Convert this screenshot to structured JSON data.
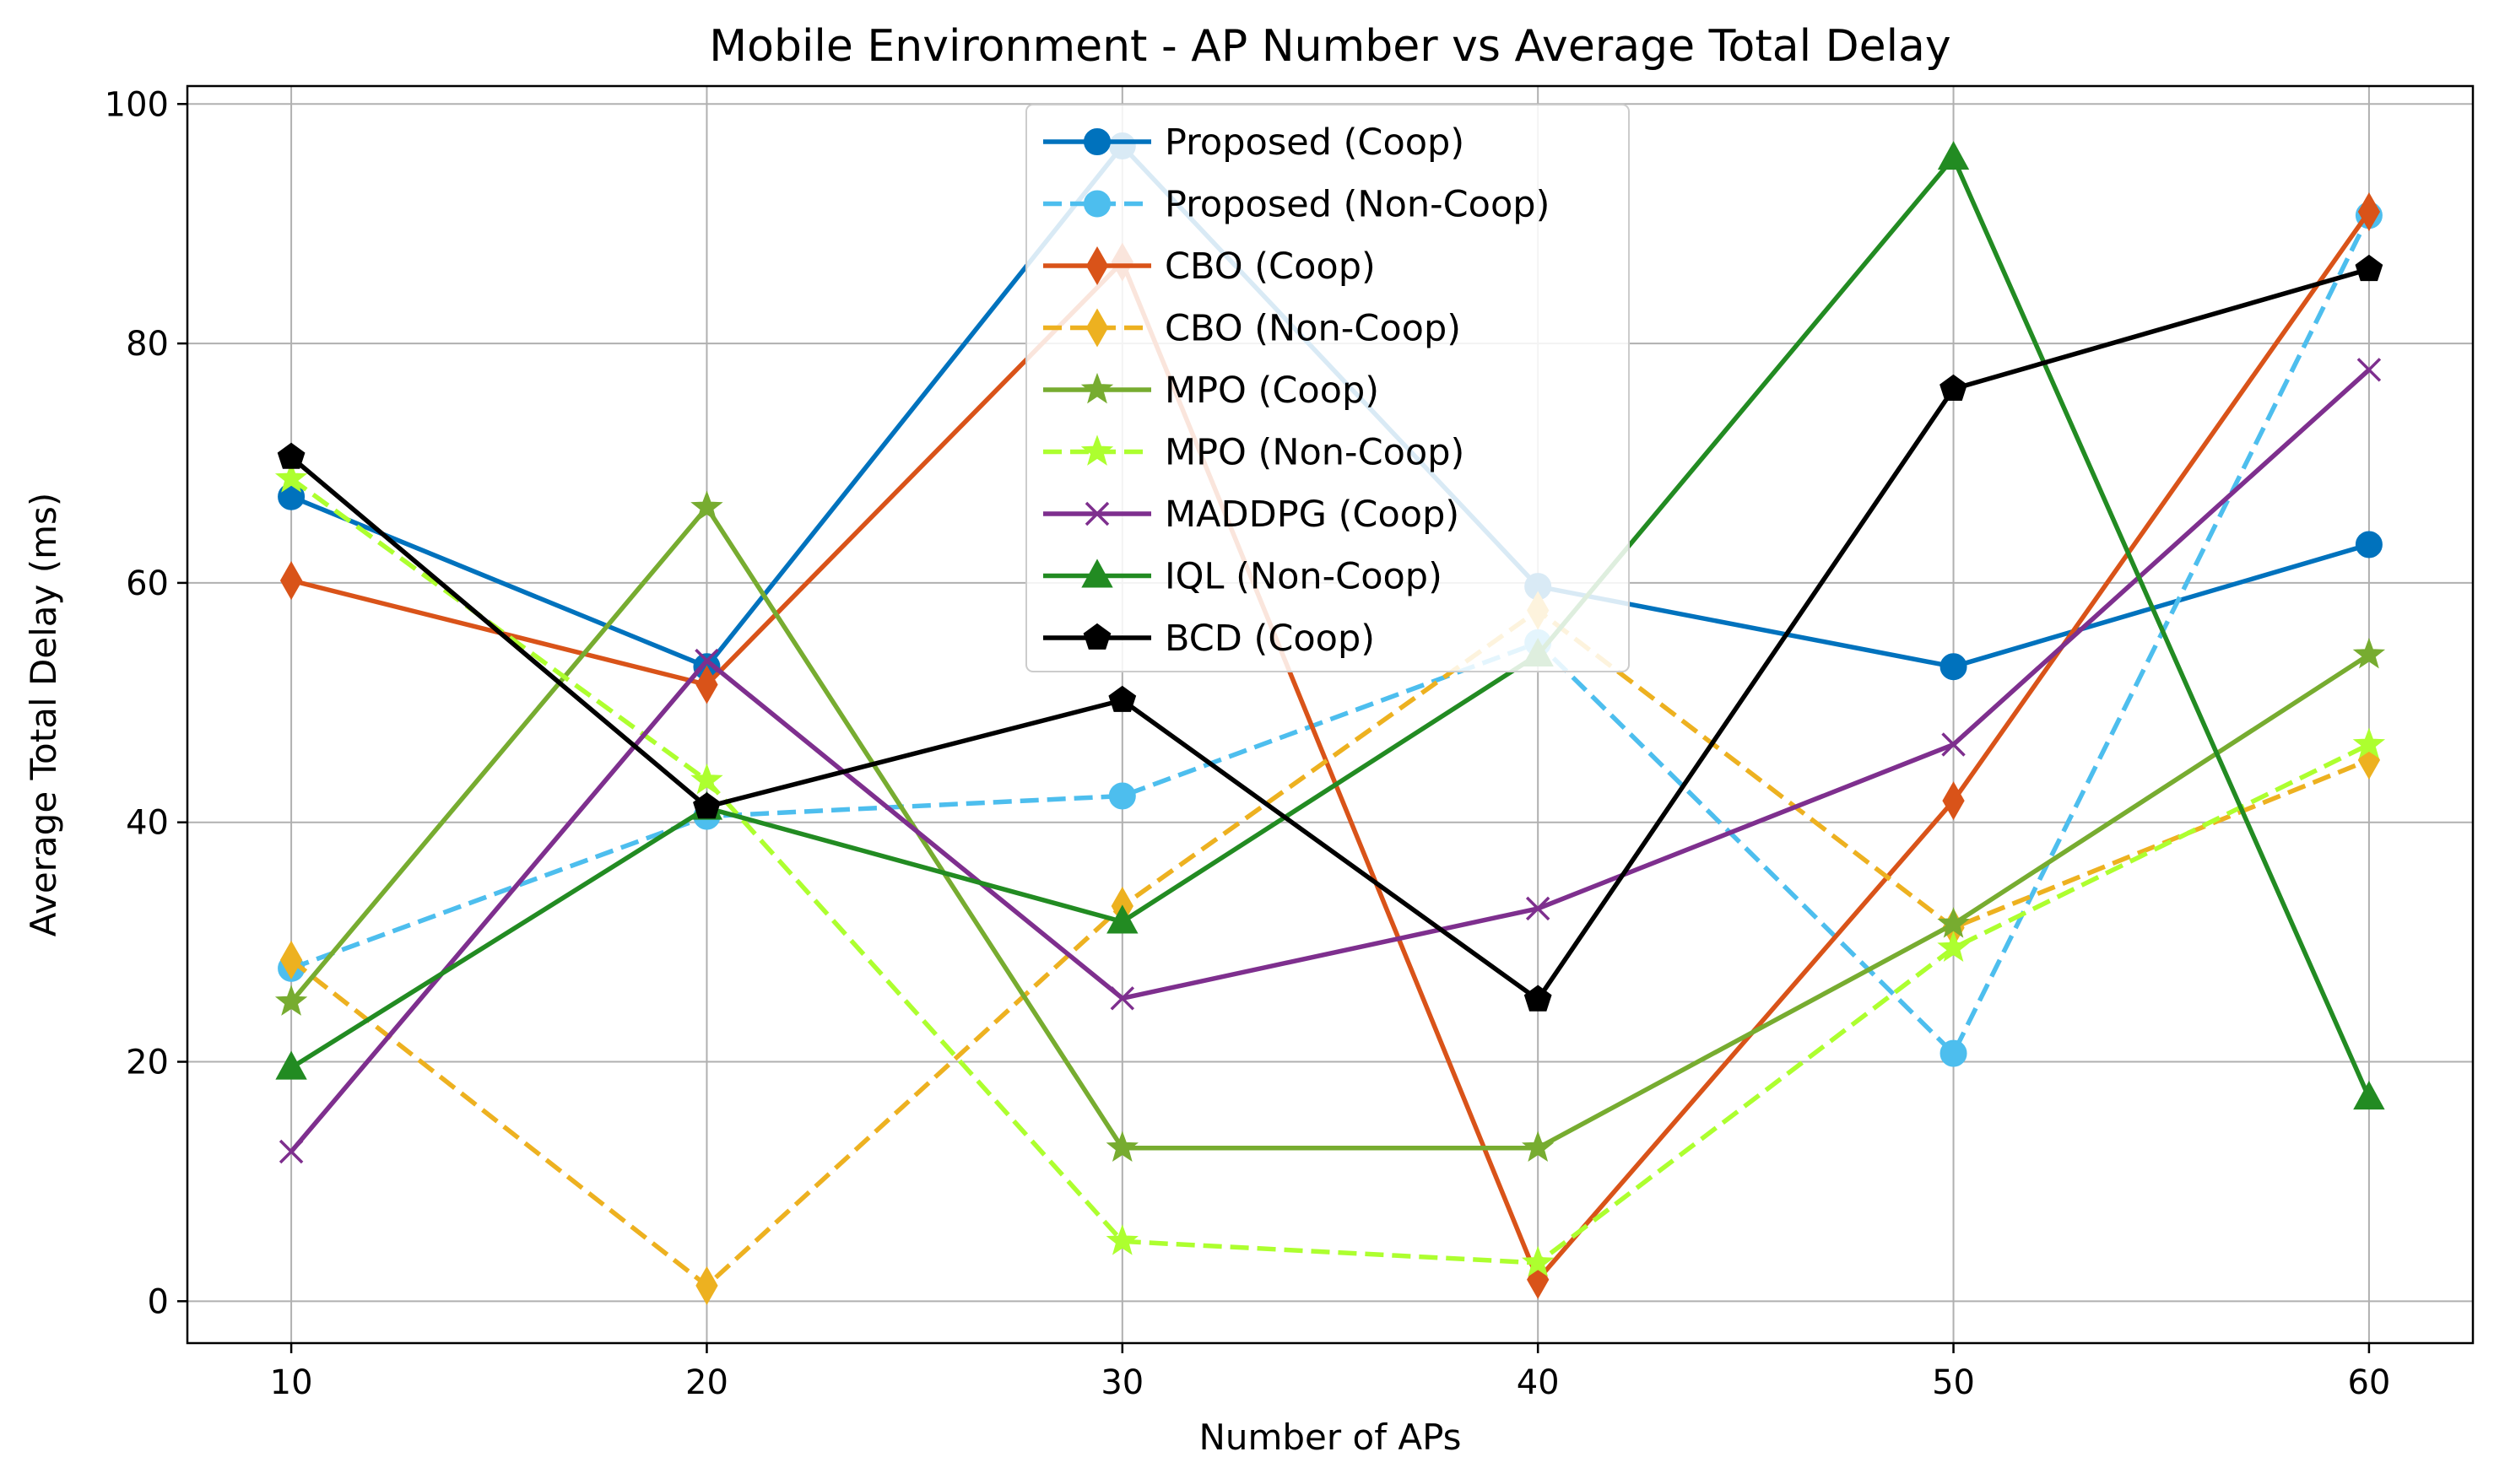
{
  "chart_data": {
    "type": "line",
    "title": "Mobile Environment - AP Number vs Average Total Delay",
    "xlabel": "Number of APs",
    "ylabel": "Average Total Delay (ms)",
    "x": [
      10,
      20,
      30,
      40,
      50,
      60
    ],
    "x_ticks": [
      10,
      20,
      30,
      40,
      50,
      60
    ],
    "y_ticks": [
      0,
      20,
      40,
      60,
      80,
      100
    ],
    "xlim": [
      7.5,
      62.5
    ],
    "ylim": [
      -3.5,
      101.5
    ],
    "grid": true,
    "legend_position": "top-center",
    "series": [
      {
        "name": "Proposed (Coop)",
        "values": [
          67.2,
          53.0,
          96.5,
          59.7,
          53.0,
          63.2
        ],
        "color": "#0072BD",
        "dash": "solid",
        "marker": "circle"
      },
      {
        "name": "Proposed (Non-Coop)",
        "values": [
          27.8,
          40.5,
          42.2,
          55.0,
          20.7,
          90.7
        ],
        "color": "#4DBEEE",
        "dash": "dashed",
        "marker": "circle"
      },
      {
        "name": "CBO (Coop)",
        "values": [
          60.2,
          51.5,
          86.8,
          1.8,
          41.8,
          91.0
        ],
        "color": "#D95319",
        "dash": "solid",
        "marker": "diamond"
      },
      {
        "name": "CBO (Non-Coop)",
        "values": [
          28.5,
          1.3,
          33.0,
          57.7,
          31.2,
          45.2
        ],
        "color": "#EDB120",
        "dash": "dashed",
        "marker": "diamond"
      },
      {
        "name": "MPO (Coop)",
        "values": [
          25.0,
          66.3,
          12.8,
          12.8,
          31.5,
          54.0
        ],
        "color": "#77AC30",
        "dash": "solid",
        "marker": "star"
      },
      {
        "name": "MPO (Non-Coop)",
        "values": [
          68.7,
          43.5,
          5.0,
          3.2,
          29.5,
          46.5
        ],
        "color": "#ADFF2F",
        "dash": "dashed",
        "marker": "star"
      },
      {
        "name": "MADDPG (Coop)",
        "values": [
          12.5,
          53.5,
          25.3,
          32.8,
          46.5,
          77.8
        ],
        "color": "#7E2F8E",
        "dash": "solid",
        "marker": "x"
      },
      {
        "name": "IQL (Non-Coop)",
        "values": [
          19.5,
          41.2,
          31.7,
          54.0,
          95.5,
          17.0
        ],
        "color": "#228B22",
        "dash": "solid",
        "marker": "triangle"
      },
      {
        "name": "BCD (Coop)",
        "values": [
          70.5,
          41.3,
          50.2,
          25.2,
          76.2,
          86.2
        ],
        "color": "#000000",
        "dash": "solid",
        "marker": "pentagon"
      }
    ]
  }
}
